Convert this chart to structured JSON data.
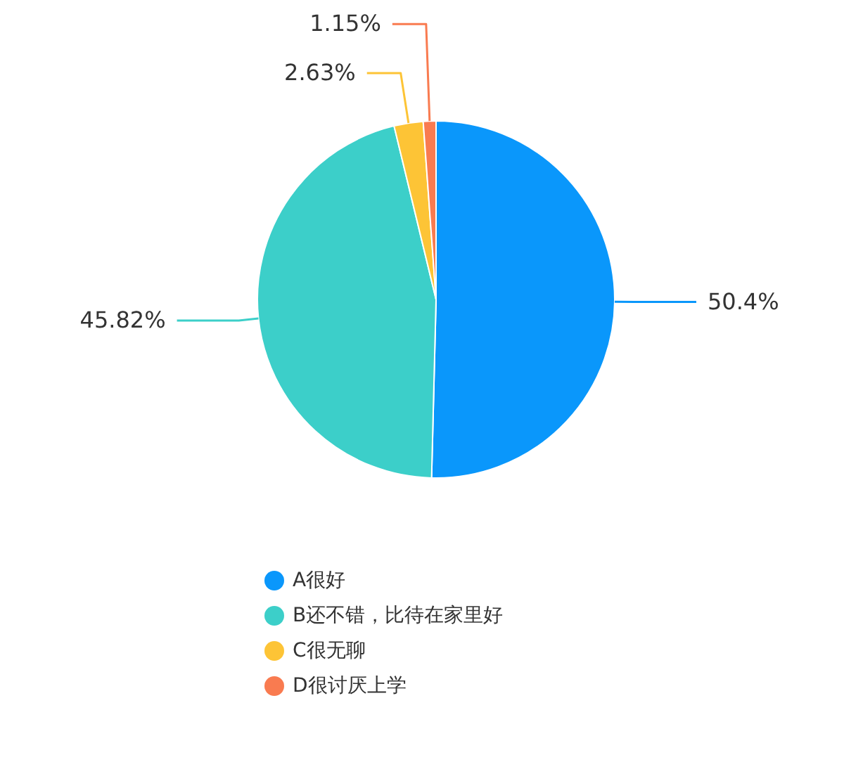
{
  "chart_data": {
    "type": "pie",
    "categories": [
      "A很好",
      "B还不错，比待在家里好",
      "C很无聊",
      "D很讨厌上学"
    ],
    "values": [
      50.4,
      45.82,
      2.63,
      1.15
    ],
    "value_labels": [
      "50.4%",
      "45.82%",
      "2.63%",
      "1.15%"
    ],
    "colors": [
      "#0a97fb",
      "#3ccfc9",
      "#fdc436",
      "#f97b50"
    ],
    "legend": "bottom"
  }
}
